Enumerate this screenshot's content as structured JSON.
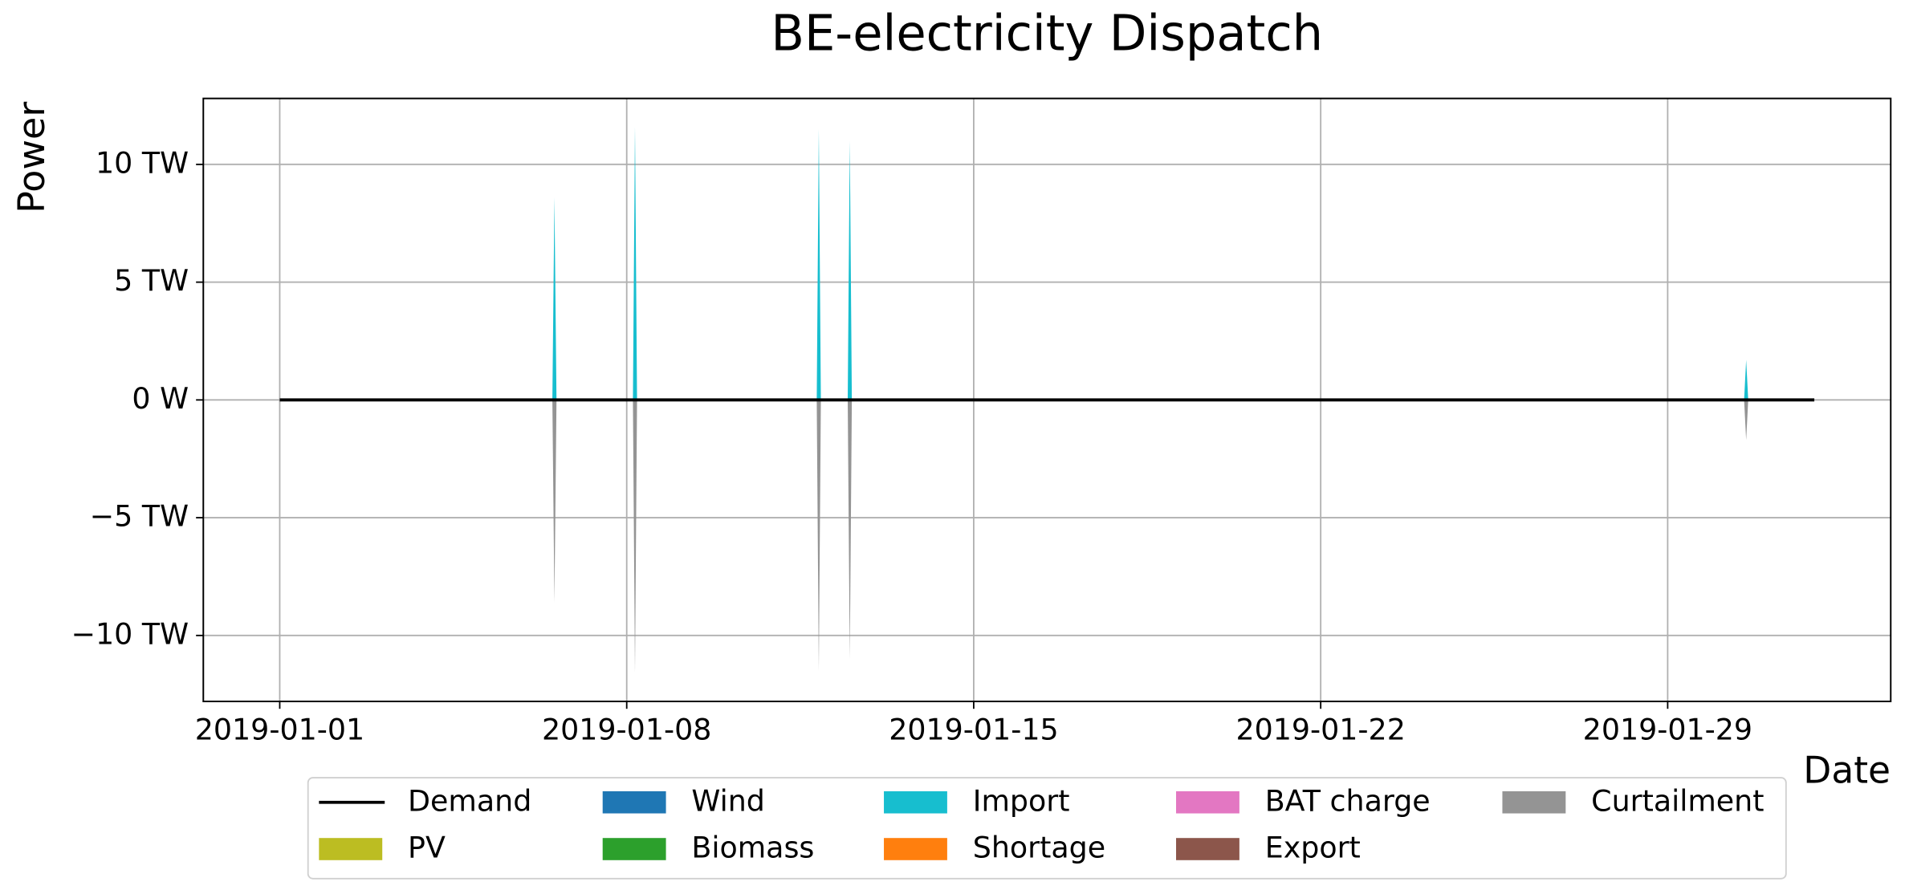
{
  "chart_data": {
    "type": "area",
    "title": "BE-electricity Dispatch",
    "xlabel": "Date",
    "ylabel": "Power",
    "x": [
      "2019-01-01 00:00",
      "2019-01-06 12:00",
      "2019-01-06 13:00",
      "2019-01-06 14:00",
      "2019-01-08 03:00",
      "2019-01-08 04:00",
      "2019-01-08 05:00",
      "2019-01-11 20:00",
      "2019-01-11 21:00",
      "2019-01-11 22:00",
      "2019-01-12 11:00",
      "2019-01-12 12:00",
      "2019-01-12 13:00",
      "2019-01-30 13:00",
      "2019-01-30 14:00",
      "2019-01-30 15:00",
      "2019-01-31 23:00"
    ],
    "series": [
      {
        "name": "Demand",
        "color": "#000000",
        "kind": "line",
        "values": [
          0,
          0,
          0,
          0,
          0,
          0,
          0,
          0,
          0,
          0,
          0,
          0,
          0,
          0,
          0,
          0,
          0
        ]
      },
      {
        "name": "PV",
        "color": "#bcbd22",
        "values": [
          0,
          0,
          0,
          0,
          0,
          0,
          0,
          0,
          0,
          0,
          0,
          0,
          0,
          0,
          0,
          0,
          0
        ]
      },
      {
        "name": "Wind",
        "color": "#1f77b4",
        "values": [
          0,
          0,
          0,
          0,
          0,
          0,
          0,
          0,
          0,
          0,
          0,
          0,
          0,
          0,
          0,
          0,
          0
        ]
      },
      {
        "name": "Biomass",
        "color": "#2ca02c",
        "values": [
          0,
          0,
          0,
          0,
          0,
          0,
          0,
          0,
          0,
          0,
          0,
          0,
          0,
          0,
          0,
          0,
          0
        ]
      },
      {
        "name": "Import",
        "color": "#17becf",
        "values": [
          0,
          0,
          8.6,
          0,
          0,
          11.6,
          0,
          0,
          11.5,
          0,
          0,
          11.0,
          0,
          0,
          1.7,
          0,
          0
        ]
      },
      {
        "name": "Shortage",
        "color": "#ff7f0e",
        "values": [
          0,
          0,
          0,
          0,
          0,
          0,
          0,
          0,
          0,
          0,
          0,
          0,
          0,
          0,
          0,
          0,
          0
        ]
      },
      {
        "name": "BAT charge",
        "color": "#e377c2",
        "values": [
          0,
          0,
          0,
          0,
          0,
          0,
          0,
          0,
          0,
          0,
          0,
          0,
          0,
          0,
          0,
          0,
          0
        ]
      },
      {
        "name": "Export",
        "color": "#8c564b",
        "values": [
          0,
          0,
          0,
          0,
          0,
          0,
          0,
          0,
          0,
          0,
          0,
          0,
          0,
          0,
          0,
          0,
          0
        ]
      },
      {
        "name": "Curtailment",
        "color": "#949494",
        "values": [
          0,
          0,
          -8.6,
          0,
          0,
          -11.6,
          0,
          0,
          -11.5,
          0,
          0,
          -11.0,
          0,
          0,
          -1.7,
          0,
          0
        ]
      }
    ],
    "xlim": [
      "2018-12-30 11:00",
      "2019-02-02 12:00"
    ],
    "xticks": [
      "2019-01-01",
      "2019-01-08",
      "2019-01-15",
      "2019-01-22",
      "2019-01-29"
    ],
    "ylim": [
      -12.8,
      12.8
    ],
    "yticks": [
      {
        "value": -10,
        "label": "−10 TW"
      },
      {
        "value": -5,
        "label": "−5 TW"
      },
      {
        "value": 0,
        "label": "0 W"
      },
      {
        "value": 5,
        "label": "5 TW"
      },
      {
        "value": 10,
        "label": "10 TW"
      }
    ],
    "grid": true,
    "legend": "lower center"
  }
}
